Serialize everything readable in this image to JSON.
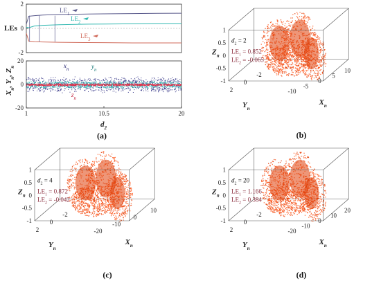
{
  "chart_data": [
    {
      "id": "a-top",
      "type": "line",
      "ylabel": "LEs",
      "xlim": [
        1,
        20
      ],
      "ylim": [
        -2,
        2
      ],
      "yticks": [
        "2",
        "0",
        "-2"
      ],
      "series": [
        {
          "name": "LE1",
          "label": "LE",
          "sub": "1",
          "color": "#5a5a8c",
          "x": [
            1,
            1.3,
            2,
            3,
            5,
            8,
            10.5,
            14,
            17,
            20
          ],
          "y": [
            0.35,
            1.0,
            1.05,
            1.1,
            1.15,
            1.18,
            1.2,
            1.22,
            1.24,
            1.25
          ]
        },
        {
          "name": "LE2",
          "label": "LE",
          "sub": "2",
          "color": "#2fb7b0",
          "x": [
            1,
            1.3,
            2,
            3,
            5,
            8,
            10.5,
            14,
            17,
            20
          ],
          "y": [
            0.1,
            0.05,
            0.2,
            0.25,
            0.3,
            0.34,
            0.36,
            0.38,
            0.4,
            0.4
          ]
        },
        {
          "name": "LE3",
          "label": "LE",
          "sub": "3",
          "color": "#d06a5a",
          "x": [
            1,
            1.3,
            2,
            3,
            5,
            8,
            10.5,
            14,
            17,
            20
          ],
          "y": [
            -0.4,
            -1.05,
            -1.1,
            -1.12,
            -1.15,
            -1.17,
            -1.18,
            -1.2,
            -1.2,
            -1.2
          ]
        }
      ]
    },
    {
      "id": "a-bottom",
      "type": "scatter",
      "ylabel_parts": [
        "X",
        "n",
        ", Y",
        "n",
        ", Z",
        "n"
      ],
      "xlabel": "d",
      "xlabel_sub": "2",
      "xlim": [
        1,
        20
      ],
      "ylim": [
        -20,
        20
      ],
      "xticks": [
        "1",
        "10.5",
        "20"
      ],
      "yticks": [
        "20",
        "0",
        "-20"
      ],
      "series": [
        {
          "name": "x_n",
          "label": "x",
          "sub": "n",
          "color": "#3a3a8a",
          "half_range": 7
        },
        {
          "name": "y_n",
          "label": "y",
          "sub": "n",
          "color": "#2fb7b0",
          "half_range": 3
        },
        {
          "name": "z_n",
          "label": "z",
          "sub": "n",
          "color": "#e0304a",
          "half_range": 1
        }
      ]
    },
    {
      "id": "b",
      "type": "scatter",
      "panel_label": "(b)",
      "d2": "2",
      "le1": "0.852",
      "le2": "-0.065",
      "zticks": [
        "1",
        "0.5",
        "0",
        "-0.5",
        "-1"
      ],
      "yticks": [
        "2",
        "0",
        "-2"
      ],
      "xticks": [
        "-10",
        "-5",
        "0",
        "5",
        "10"
      ]
    },
    {
      "id": "c",
      "type": "scatter",
      "panel_label": "(c)",
      "d2": "4",
      "le1": "0.872",
      "le2": "-0.042",
      "zticks": [
        "1",
        "0.5",
        "0",
        "-0.5",
        "-1"
      ],
      "yticks": [
        "2",
        "0",
        "-2"
      ],
      "xticks": [
        "-20",
        "-10",
        "0",
        "10"
      ]
    },
    {
      "id": "d",
      "type": "scatter",
      "panel_label": "(d)",
      "d2": "20",
      "le1": "1.166",
      "le2": "0.384",
      "zticks": [
        "1",
        "0.5",
        "0",
        "-0.5",
        "-1"
      ],
      "yticks": [
        "2",
        "0",
        "-2"
      ],
      "xticks": [
        "-20",
        "-10",
        "0",
        "10",
        "20"
      ]
    }
  ],
  "panel_a_label": "(a)",
  "axis_names": {
    "Z": "Z",
    "Y": "Y",
    "X": "X",
    "sub": "n",
    "d": "d",
    "LE": "LE",
    "eq": " = "
  },
  "colors": {
    "cloud": "#ff5a1f",
    "cloud_dark": "#e0400a",
    "annot": "#8b2f3f",
    "frame": "#555555"
  }
}
